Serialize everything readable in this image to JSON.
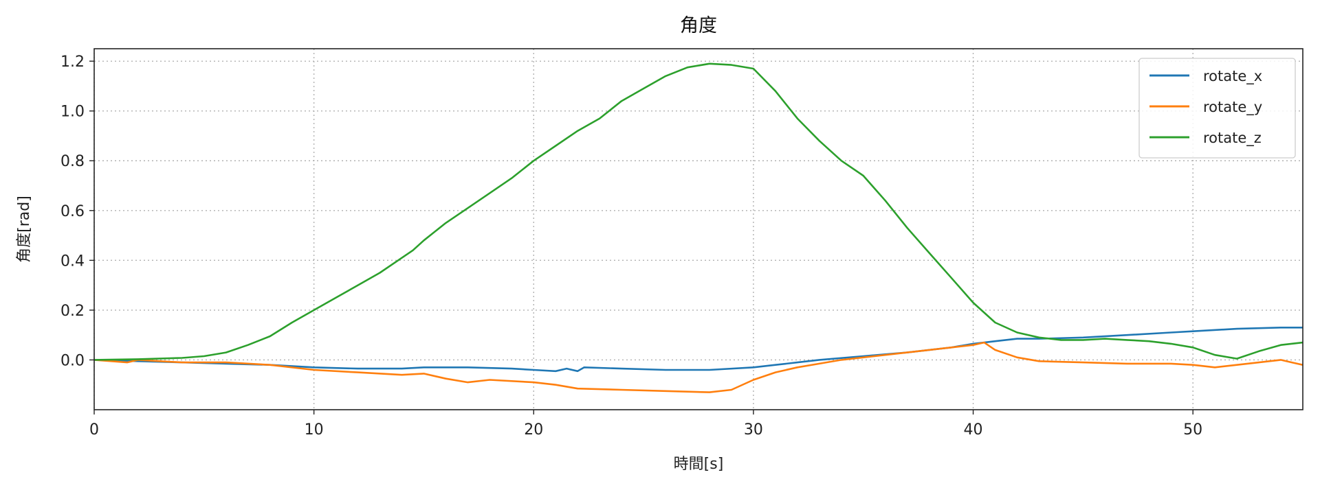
{
  "chart_data": {
    "type": "line",
    "title": "角度",
    "xlabel": "時間[s]",
    "ylabel": "角度[rad]",
    "xlim": [
      0,
      55
    ],
    "ylim": [
      -0.2,
      1.25
    ],
    "xticks": [
      0,
      10,
      20,
      30,
      40,
      50
    ],
    "yticks": [
      0.0,
      0.2,
      0.4,
      0.6,
      0.8,
      1.0,
      1.2
    ],
    "xtick_labels": [
      "0",
      "10",
      "20",
      "30",
      "40",
      "50"
    ],
    "ytick_labels": [
      "0.0",
      "0.2",
      "0.4",
      "0.6",
      "0.8",
      "1.0",
      "1.2"
    ],
    "grid": true,
    "legend_position": "top-right",
    "series": [
      {
        "name": "rotate_x",
        "color": "#1f77b4",
        "points": [
          [
            0,
            0.0
          ],
          [
            2,
            -0.005
          ],
          [
            4,
            -0.01
          ],
          [
            6,
            -0.015
          ],
          [
            8,
            -0.02
          ],
          [
            10,
            -0.03
          ],
          [
            12,
            -0.035
          ],
          [
            14,
            -0.035
          ],
          [
            15,
            -0.03
          ],
          [
            17,
            -0.03
          ],
          [
            19,
            -0.035
          ],
          [
            20,
            -0.04
          ],
          [
            21,
            -0.045
          ],
          [
            21.5,
            -0.035
          ],
          [
            22,
            -0.045
          ],
          [
            22.3,
            -0.03
          ],
          [
            24,
            -0.035
          ],
          [
            26,
            -0.04
          ],
          [
            28,
            -0.04
          ],
          [
            30,
            -0.03
          ],
          [
            31,
            -0.02
          ],
          [
            32,
            -0.01
          ],
          [
            33,
            0.0
          ],
          [
            35,
            0.015
          ],
          [
            37,
            0.03
          ],
          [
            38,
            0.04
          ],
          [
            39,
            0.05
          ],
          [
            40,
            0.065
          ],
          [
            41,
            0.075
          ],
          [
            42,
            0.085
          ],
          [
            43,
            0.085
          ],
          [
            45,
            0.09
          ],
          [
            47,
            0.1
          ],
          [
            49,
            0.11
          ],
          [
            50,
            0.115
          ],
          [
            52,
            0.125
          ],
          [
            54,
            0.13
          ],
          [
            55,
            0.13
          ]
        ]
      },
      {
        "name": "rotate_y",
        "color": "#ff7f0e",
        "points": [
          [
            0,
            0.0
          ],
          [
            1.5,
            -0.01
          ],
          [
            2,
            0.0
          ],
          [
            4,
            -0.01
          ],
          [
            6,
            -0.01
          ],
          [
            8,
            -0.02
          ],
          [
            10,
            -0.04
          ],
          [
            12,
            -0.05
          ],
          [
            14,
            -0.06
          ],
          [
            15,
            -0.055
          ],
          [
            16,
            -0.075
          ],
          [
            17,
            -0.09
          ],
          [
            18,
            -0.08
          ],
          [
            20,
            -0.09
          ],
          [
            21,
            -0.1
          ],
          [
            22,
            -0.115
          ],
          [
            24,
            -0.12
          ],
          [
            26,
            -0.125
          ],
          [
            28,
            -0.13
          ],
          [
            29,
            -0.12
          ],
          [
            30,
            -0.08
          ],
          [
            31,
            -0.05
          ],
          [
            32,
            -0.03
          ],
          [
            33,
            -0.015
          ],
          [
            34,
            0.0
          ],
          [
            35,
            0.01
          ],
          [
            36,
            0.02
          ],
          [
            37,
            0.03
          ],
          [
            38,
            0.04
          ],
          [
            39,
            0.05
          ],
          [
            40,
            0.06
          ],
          [
            40.5,
            0.07
          ],
          [
            41,
            0.04
          ],
          [
            42,
            0.01
          ],
          [
            43,
            -0.005
          ],
          [
            45,
            -0.01
          ],
          [
            47,
            -0.015
          ],
          [
            49,
            -0.015
          ],
          [
            50,
            -0.02
          ],
          [
            51,
            -0.03
          ],
          [
            52,
            -0.02
          ],
          [
            53,
            -0.01
          ],
          [
            54,
            0.0
          ],
          [
            54.5,
            -0.01
          ],
          [
            55,
            -0.02
          ]
        ]
      },
      {
        "name": "rotate_z",
        "color": "#2ca02c",
        "points": [
          [
            0,
            0.0
          ],
          [
            2,
            0.003
          ],
          [
            4,
            0.008
          ],
          [
            5,
            0.015
          ],
          [
            6,
            0.03
          ],
          [
            7,
            0.06
          ],
          [
            8,
            0.095
          ],
          [
            9,
            0.15
          ],
          [
            10,
            0.2
          ],
          [
            11,
            0.25
          ],
          [
            12,
            0.3
          ],
          [
            13,
            0.35
          ],
          [
            14,
            0.41
          ],
          [
            14.5,
            0.44
          ],
          [
            15,
            0.48
          ],
          [
            16,
            0.55
          ],
          [
            17,
            0.61
          ],
          [
            18,
            0.67
          ],
          [
            19,
            0.73
          ],
          [
            20,
            0.8
          ],
          [
            21,
            0.86
          ],
          [
            22,
            0.92
          ],
          [
            23,
            0.97
          ],
          [
            24,
            1.04
          ],
          [
            25,
            1.09
          ],
          [
            26,
            1.14
          ],
          [
            27,
            1.175
          ],
          [
            28,
            1.19
          ],
          [
            29,
            1.185
          ],
          [
            30,
            1.17
          ],
          [
            31,
            1.08
          ],
          [
            32,
            0.97
          ],
          [
            33,
            0.88
          ],
          [
            34,
            0.8
          ],
          [
            35,
            0.74
          ],
          [
            36,
            0.64
          ],
          [
            37,
            0.53
          ],
          [
            38,
            0.43
          ],
          [
            39,
            0.33
          ],
          [
            40,
            0.23
          ],
          [
            41,
            0.15
          ],
          [
            42,
            0.11
          ],
          [
            43,
            0.09
          ],
          [
            44,
            0.08
          ],
          [
            45,
            0.08
          ],
          [
            46,
            0.085
          ],
          [
            47,
            0.08
          ],
          [
            48,
            0.075
          ],
          [
            49,
            0.065
          ],
          [
            50,
            0.05
          ],
          [
            51,
            0.02
          ],
          [
            52,
            0.005
          ],
          [
            53,
            0.035
          ],
          [
            54,
            0.06
          ],
          [
            55,
            0.07
          ]
        ]
      }
    ]
  }
}
